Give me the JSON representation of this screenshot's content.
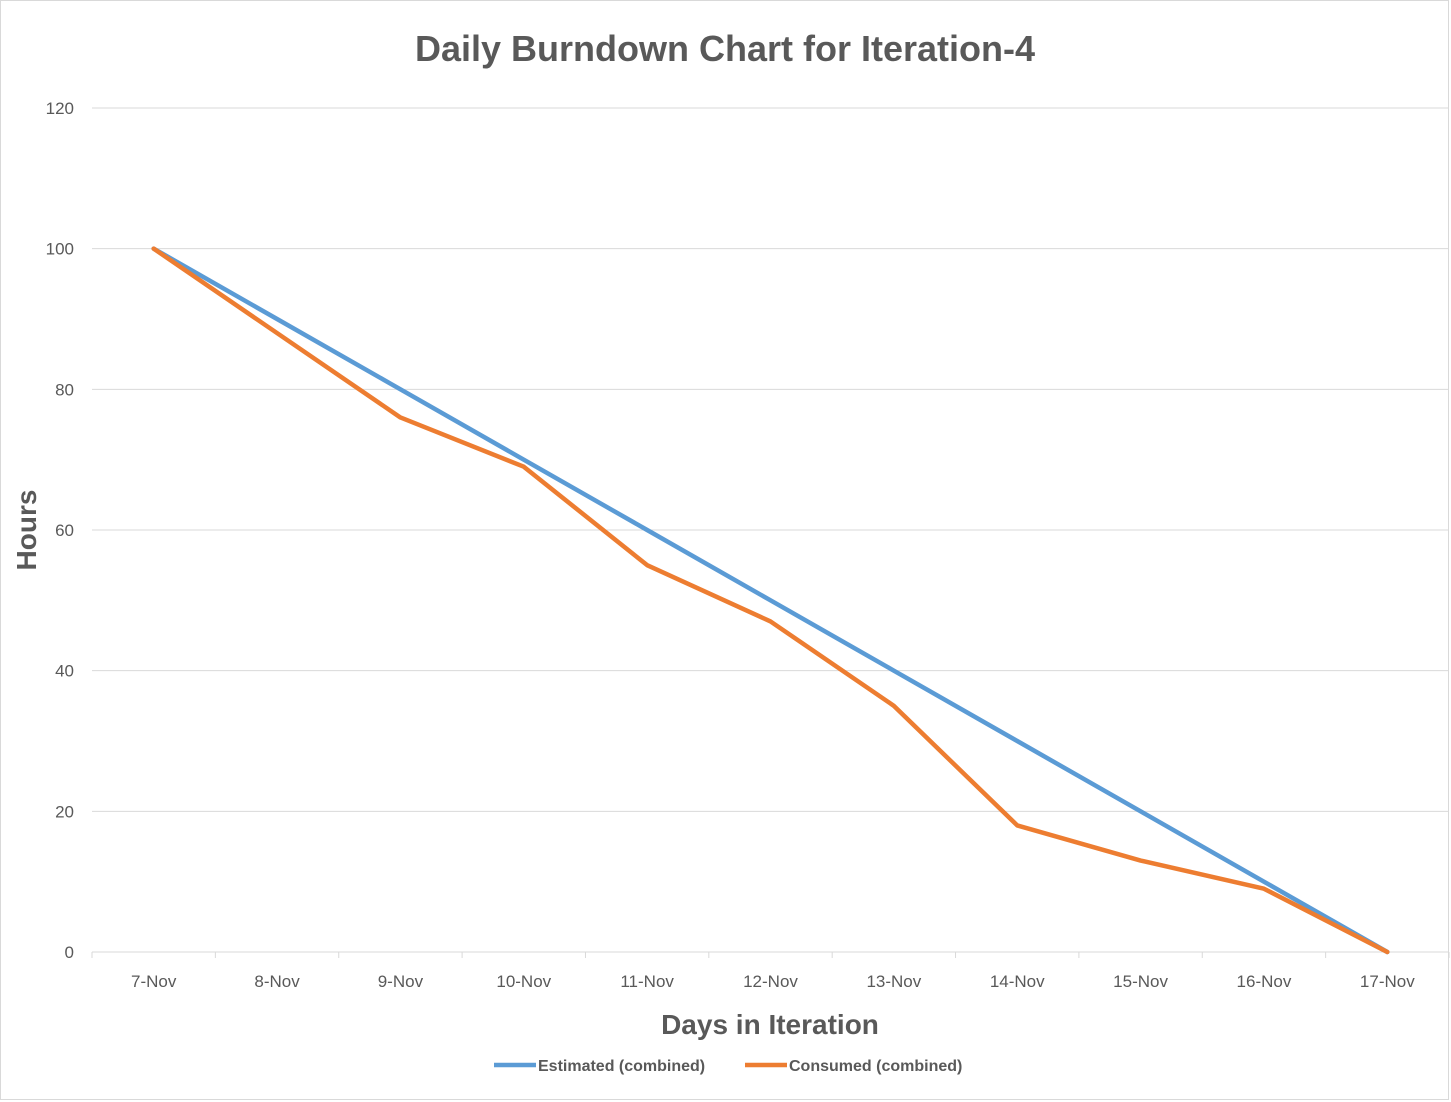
{
  "chart_data": {
    "type": "line",
    "title": "Daily Burndown Chart for Iteration-4",
    "xlabel": "Days in Iteration",
    "ylabel": "Hours",
    "categories": [
      "7-Nov",
      "8-Nov",
      "9-Nov",
      "10-Nov",
      "11-Nov",
      "12-Nov",
      "13-Nov",
      "14-Nov",
      "15-Nov",
      "16-Nov",
      "17-Nov"
    ],
    "ylim": [
      0,
      120
    ],
    "yticks": [
      0,
      20,
      40,
      60,
      80,
      100,
      120
    ],
    "grid": true,
    "legend_position": "bottom",
    "series": [
      {
        "name": "Estimated (combined)",
        "color": "#5b9bd5",
        "values": [
          100,
          90,
          80,
          70,
          60,
          50,
          40,
          30,
          20,
          10,
          0
        ]
      },
      {
        "name": "Consumed (combined)",
        "color": "#ed7d31",
        "values": [
          100,
          88,
          76,
          69,
          55,
          47,
          35,
          18,
          13,
          9,
          0
        ]
      }
    ]
  }
}
